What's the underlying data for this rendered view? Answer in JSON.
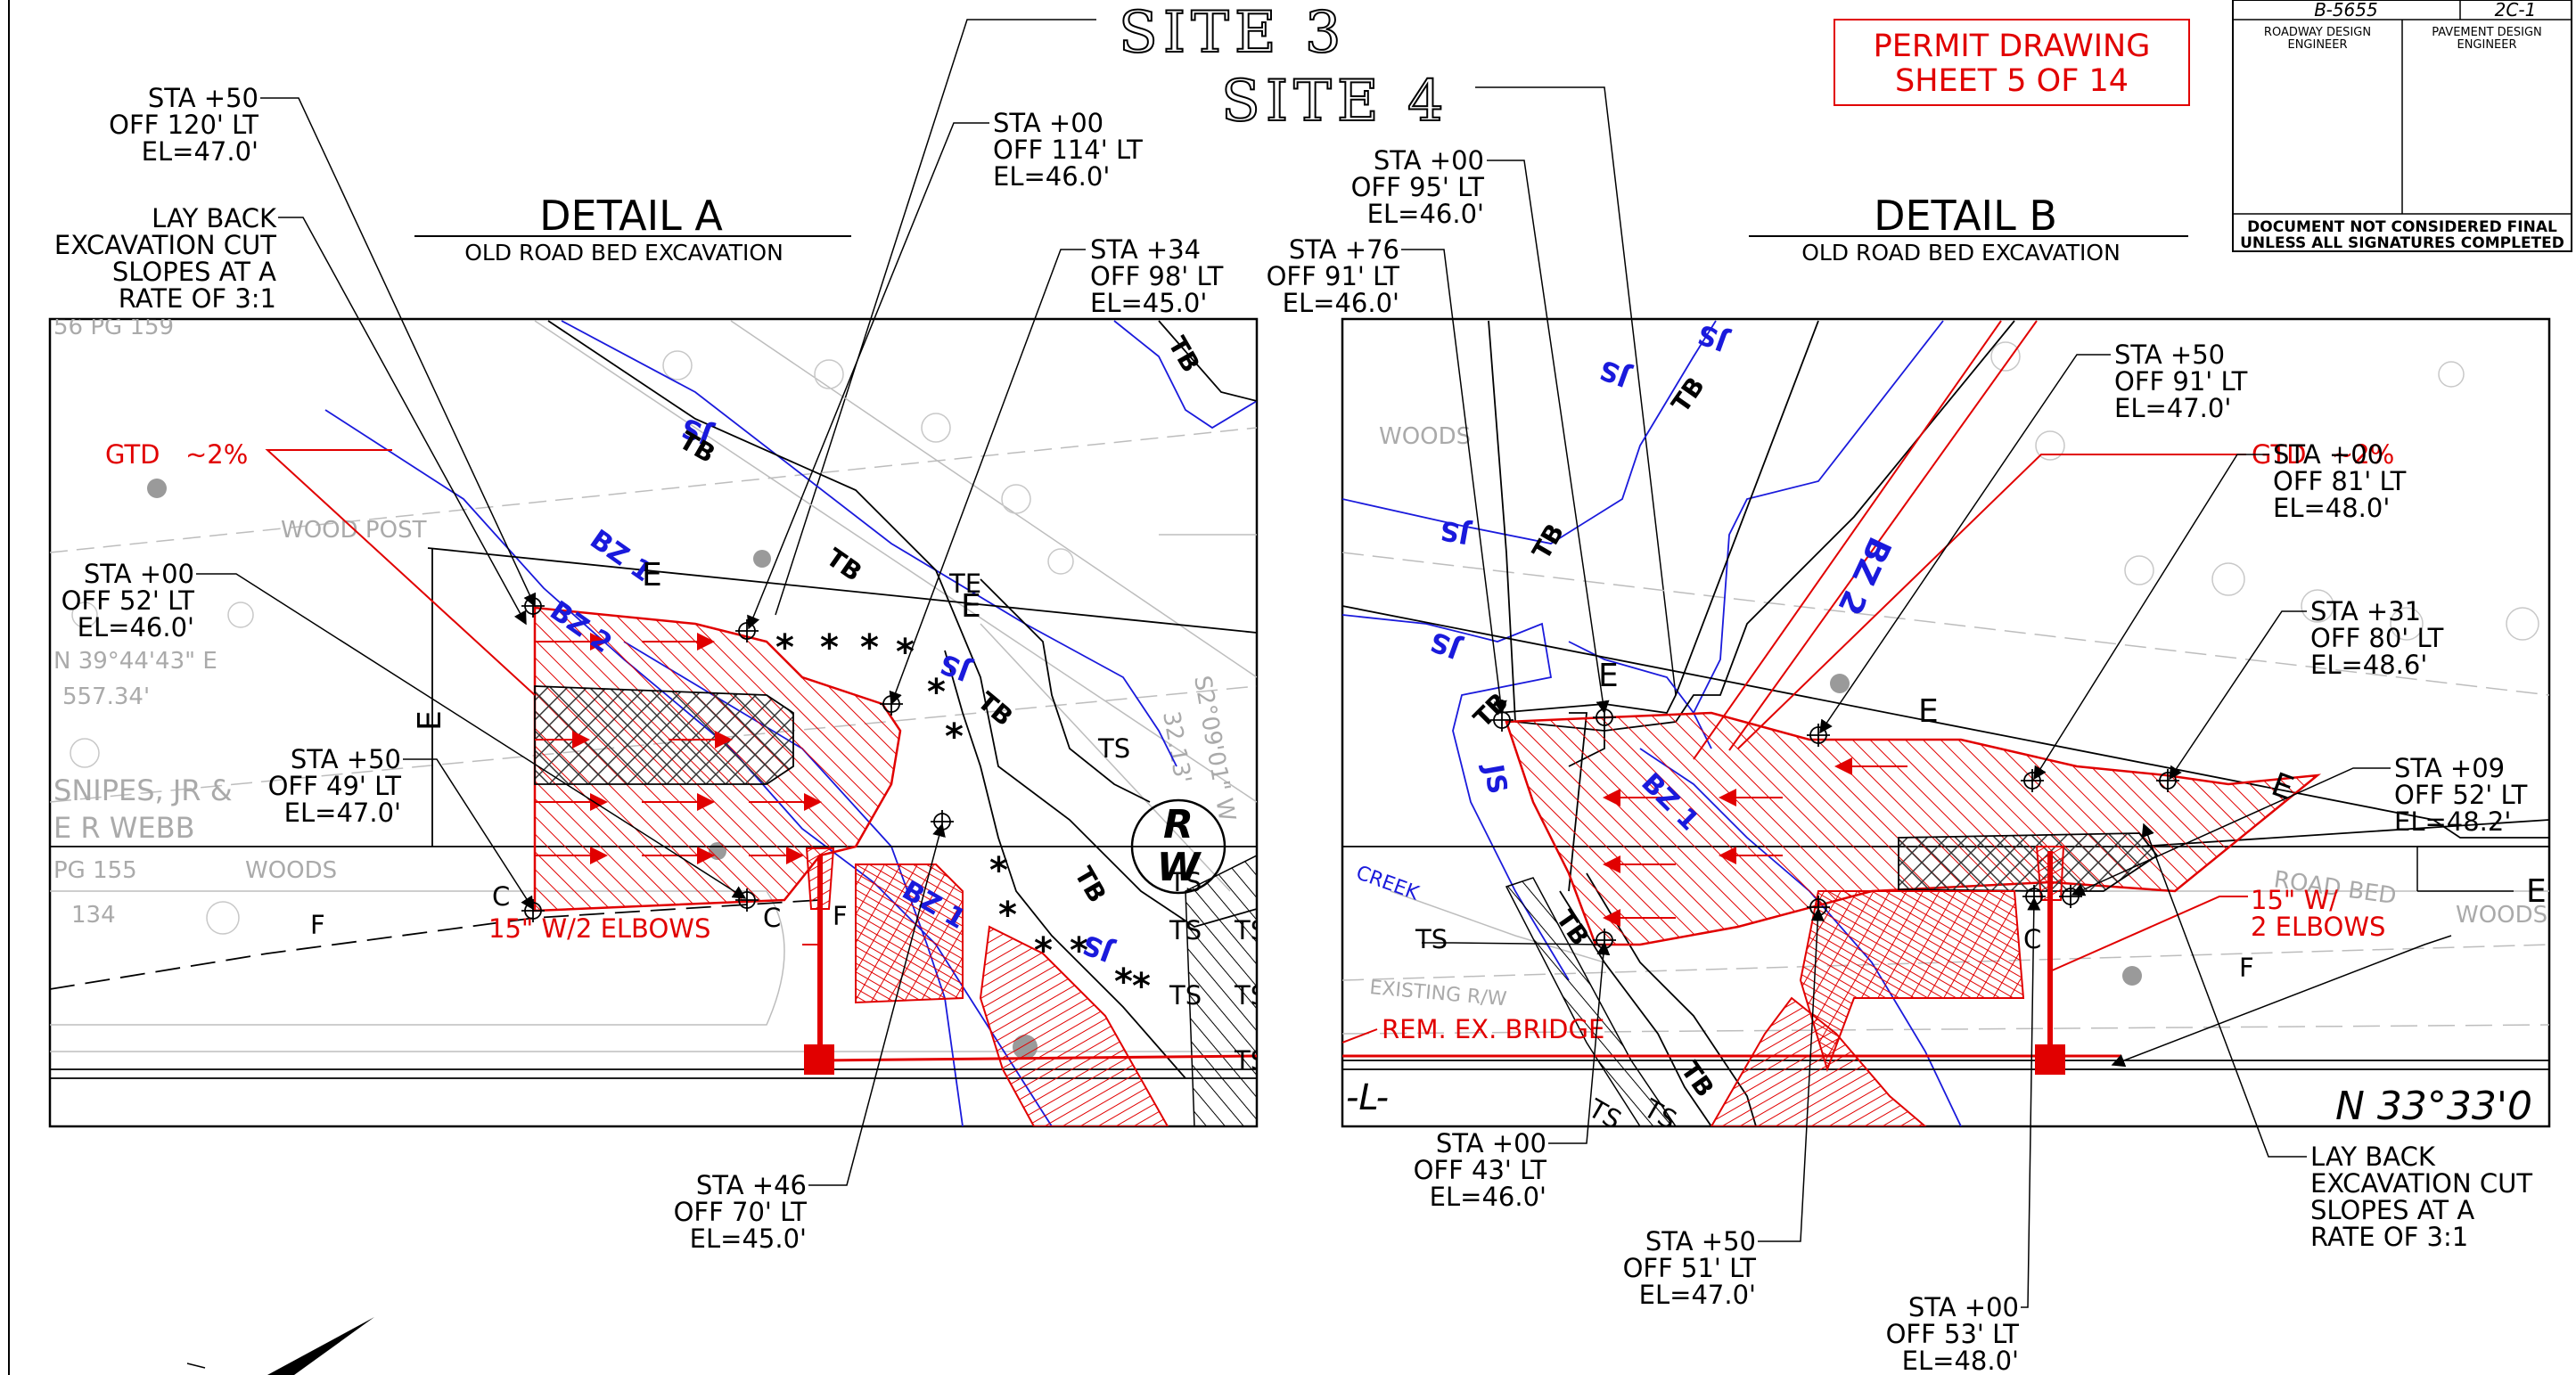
{
  "site_labels": {
    "site3": "SITE 3",
    "site4": "SITE 4"
  },
  "permit": {
    "line1": "PERMIT DRAWING",
    "line2": "SHEET 5 OF 14"
  },
  "title_block": {
    "project": "B-5655",
    "sheet": "2C-1",
    "roadway": [
      "ROADWAY DESIGN",
      "ENGINEER"
    ],
    "pavement": [
      "PAVEMENT DESIGN",
      "ENGINEER"
    ],
    "notice": [
      "DOCUMENT NOT CONSIDERED FINAL",
      "UNLESS ALL SIGNATURES COMPLETED"
    ]
  },
  "detail_a": {
    "title": "DETAIL A",
    "subtitle": "OLD ROAD BED EXCAVATION",
    "callouts": {
      "c1": [
        "STA +50",
        "OFF 120' LT",
        "EL=47.0'"
      ],
      "c2": [
        "LAY BACK",
        "EXCAVATION CUT",
        "SLOPES AT A",
        "RATE OF 3:1"
      ],
      "c3": [
        "STA +00",
        "OFF 114' LT",
        "EL=46.0'"
      ],
      "c4": [
        "STA +34",
        "OFF 98' LT",
        "EL=45.0'"
      ],
      "c5": [
        "STA +00",
        "OFF 52' LT",
        "EL=46.0'"
      ],
      "c6": [
        "STA +50",
        "OFF 49' LT",
        "EL=47.0'"
      ],
      "c7": [
        "STA +46",
        "OFF 70' LT",
        "EL=45.0'"
      ]
    },
    "gtd": "GTD",
    "gtd_slope": "~2%",
    "pipe": "15\" W/2 ELBOWS",
    "plan_text": {
      "bz1": "BZ 1",
      "bz2": "BZ 2",
      "bz1b": "BZ 1",
      "js": "JS",
      "tb": "TB",
      "te": "TE",
      "ts": "TS",
      "e": "E",
      "c": "C",
      "f": "F",
      "rw_r": "R",
      "rw_w": "W"
    },
    "background_text": {
      "pg159": "56 PG 159",
      "wood_post": "WOOD POST",
      "bearing": "N 39°44'43\" E",
      "dist": "557.34'",
      "owner1": "SNIPES, JR &",
      "owner2": "E R WEBB",
      "pg155": "PG 155",
      "n134": "134",
      "woods": "WOODS",
      "b1": "S2°09'01\" W",
      "b2": "32.13'"
    }
  },
  "detail_b": {
    "title": "DETAIL B",
    "subtitle": "OLD ROAD BED EXCAVATION",
    "callouts": {
      "c1": [
        "STA +00",
        "OFF 95' LT",
        "EL=46.0'"
      ],
      "c2": [
        "STA +76",
        "OFF 91' LT",
        "EL=46.0'"
      ],
      "c3": [
        "STA +50",
        "OFF 91' LT",
        "EL=47.0'"
      ],
      "c4": [
        "STA +00",
        "OFF 81' LT",
        "EL=48.0'"
      ],
      "c5": [
        "STA +31",
        "OFF 80' LT",
        "EL=48.6'"
      ],
      "c6": [
        "STA +09",
        "OFF 52' LT",
        "EL=48.2'"
      ],
      "c7": [
        "STA +00",
        "OFF 43' LT",
        "EL=46.0'"
      ],
      "c8": [
        "STA +50",
        "OFF 51' LT",
        "EL=47.0'"
      ],
      "c9": [
        "STA +00",
        "OFF 53' LT",
        "EL=48.0'"
      ],
      "c10": [
        "LAY BACK",
        "EXCAVATION CUT",
        "SLOPES AT A",
        "RATE OF 3:1"
      ]
    },
    "gtd": "GTD",
    "gtd_slope": "~2%",
    "pipe": [
      "15\" W/",
      "2 ELBOWS"
    ],
    "rem": "REM. EX. BRIDGE",
    "plan_text": {
      "js": "JS",
      "tb": "TB",
      "bz1": "BZ 1",
      "bz2": "BZ 2",
      "e": "E",
      "c": "C",
      "f": "F",
      "ts": "TS",
      "l": "-L-",
      "bearing": "N 33°33'0"
    },
    "background_text": {
      "woods": "WOODS",
      "creek": "CREEK",
      "rw": "EXISTING R/W",
      "road_bed": "ROAD BED"
    }
  },
  "colors": {
    "red": "#e10000",
    "blue": "#1a1adc",
    "line": "#000000",
    "gray": "#9a9a9a"
  }
}
